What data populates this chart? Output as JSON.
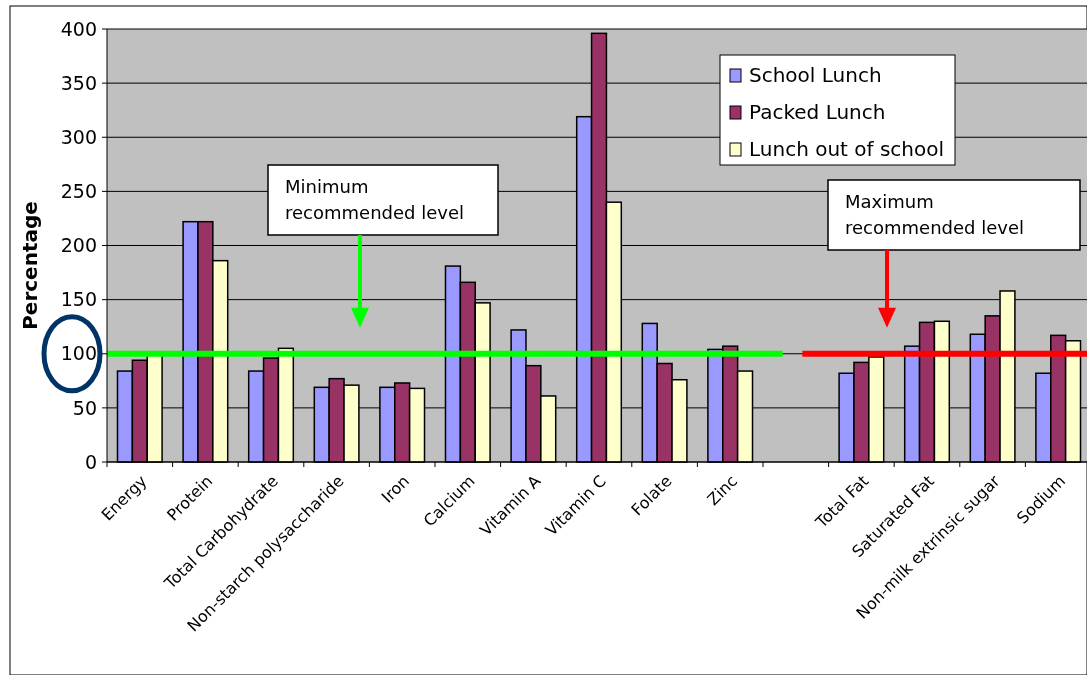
{
  "chart_data": {
    "type": "bar",
    "ylabel": "Percentage",
    "categories": [
      "Energy",
      "Protein",
      "Total Carbohydrate",
      "Non-starch polysaccharide",
      "Iron",
      "Calcium",
      "Vitamin A",
      "Vitamin C",
      "Folate",
      "Zinc",
      null,
      "Total Fat",
      "Saturated Fat",
      "Non-milk extrinsic sugar",
      "Sodium"
    ],
    "series": [
      {
        "name": "School Lunch",
        "color": "#9999ff",
        "values": [
          84,
          222,
          84,
          69,
          69,
          181,
          122,
          319,
          128,
          104,
          null,
          82,
          107,
          118,
          82
        ]
      },
      {
        "name": "Packed Lunch",
        "color": "#993366",
        "values": [
          94,
          222,
          96,
          77,
          73,
          166,
          89,
          396,
          91,
          107,
          null,
          92,
          129,
          135,
          117
        ]
      },
      {
        "name": "Lunch out of school",
        "color": "#ffffcc",
        "values": [
          99,
          186,
          105,
          71,
          68,
          147,
          61,
          240,
          76,
          84,
          null,
          97,
          130,
          158,
          112
        ]
      }
    ],
    "ylim": [
      0,
      400
    ],
    "yticks": [
      0,
      50,
      100,
      150,
      200,
      250,
      300,
      350,
      400
    ],
    "grid": "y",
    "legend": "top right",
    "ref_lines": [
      {
        "axis": "y",
        "value": 100,
        "color": "#00ff00"
      },
      {
        "axis": "y",
        "value": 100,
        "color": "#ff0000"
      }
    ],
    "annotations": [
      "Minimum recommended level",
      "Maximum recommended level"
    ]
  }
}
